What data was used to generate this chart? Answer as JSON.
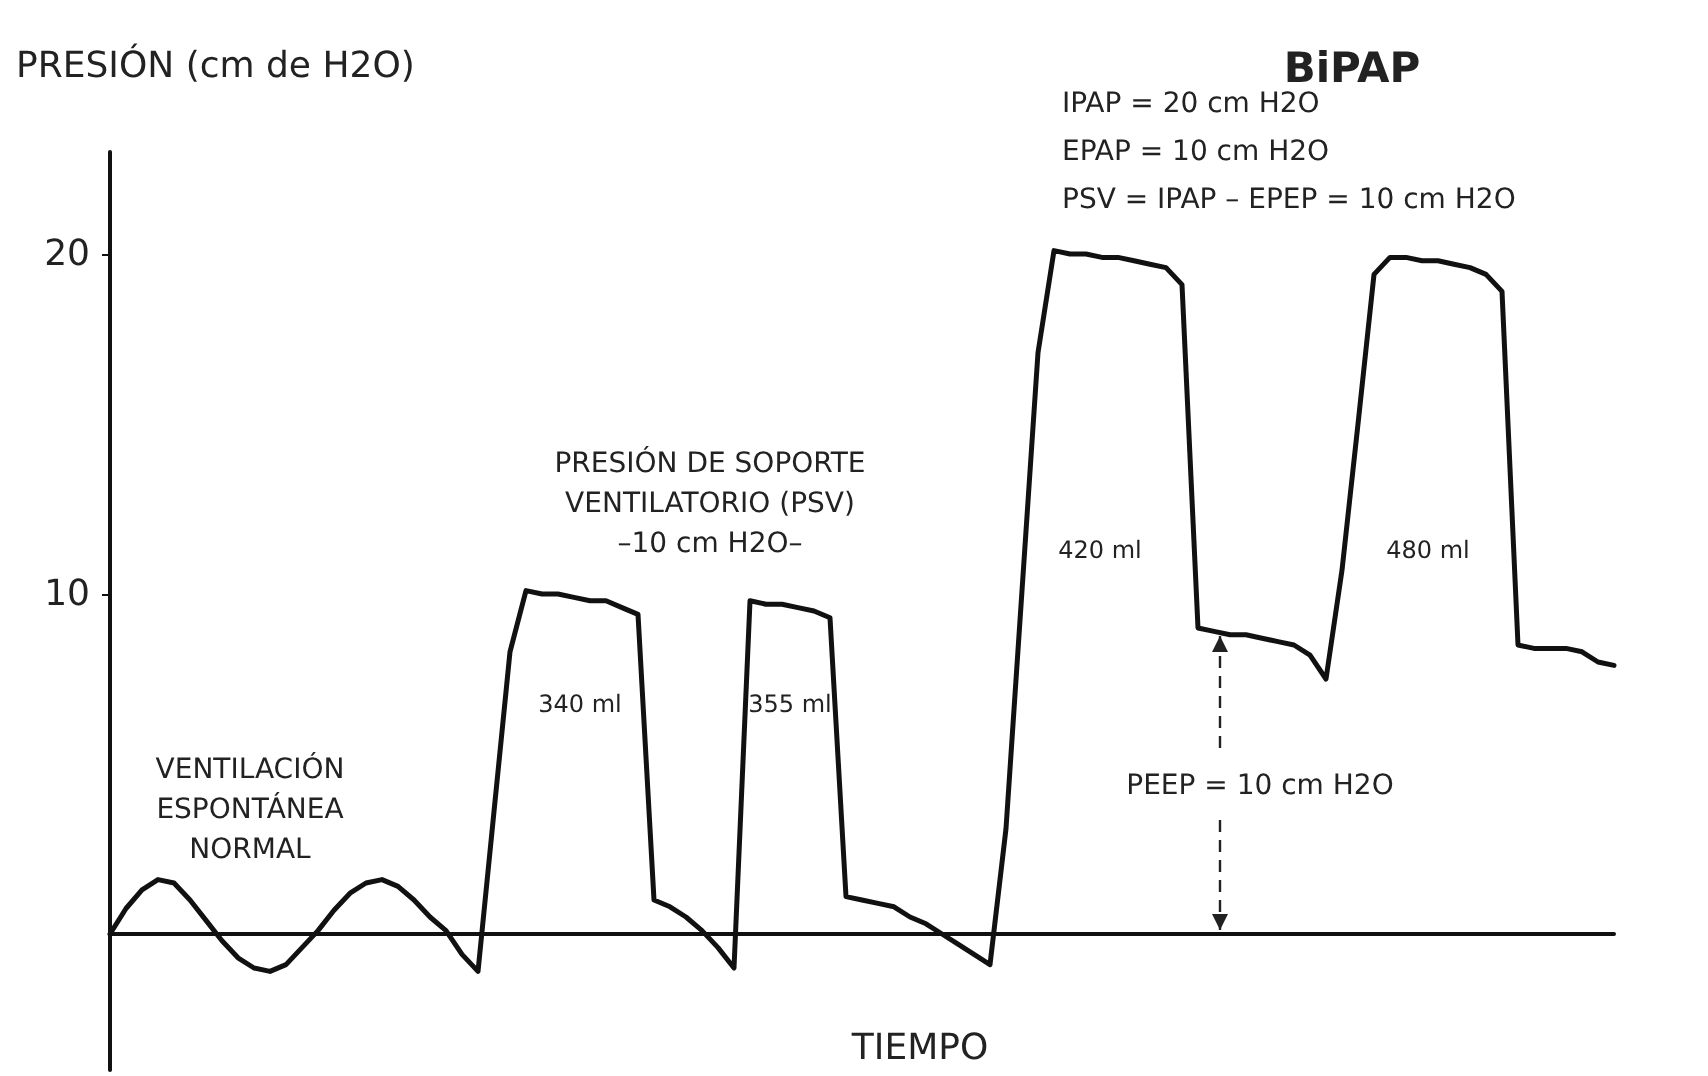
{
  "chart_data": {
    "type": "line",
    "ylabel": "PRESIÓN (cm de H2O)",
    "xlabel": "TIEMPO",
    "categories": [
      null,
      null,
      null,
      null,
      null,
      null,
      null,
      null,
      null,
      null,
      null,
      null,
      null,
      null,
      null,
      null,
      null,
      null,
      null,
      null,
      null,
      null,
      null,
      null,
      null,
      null,
      null,
      null,
      null,
      null,
      null,
      null,
      null,
      null,
      null,
      null,
      null,
      null,
      null,
      null,
      null,
      null,
      null,
      null,
      null,
      null,
      null,
      null,
      null,
      null,
      null,
      null,
      null,
      null,
      null,
      null,
      null,
      null,
      null,
      null,
      null,
      null,
      null,
      null,
      null,
      null,
      null,
      null,
      null,
      null,
      null,
      null,
      null,
      null,
      null,
      null,
      null,
      null,
      null,
      null,
      null,
      null,
      null,
      null,
      null,
      null,
      null,
      null,
      null,
      null,
      null,
      null,
      null,
      null,
      null
    ],
    "ylim": [
      -4,
      23
    ],
    "yticks": [
      10,
      20
    ],
    "tick_labels": "y",
    "grid": false,
    "line_style": "solid",
    "series": [
      {
        "color": "#111111",
        "values": [
          0,
          0.75,
          1.3,
          1.6,
          1.5,
          1.0,
          0.4,
          -0.2,
          -0.7,
          -1.0,
          -1.1,
          -0.9,
          -0.4,
          0.1,
          0.7,
          1.2,
          1.5,
          1.6,
          1.4,
          1.0,
          0.5,
          0.1,
          -0.6,
          -1.1,
          3.6,
          8.3,
          10.1,
          10.0,
          10.0,
          9.9,
          9.8,
          9.8,
          9.6,
          9.4,
          1.0,
          0.8,
          0.5,
          0.1,
          -0.4,
          -1.0,
          9.8,
          9.7,
          9.7,
          9.6,
          9.5,
          9.3,
          1.1,
          1.0,
          0.9,
          0.8,
          0.5,
          0.3,
          0.0,
          -0.3,
          -0.6,
          -0.9,
          3.1,
          10.1,
          17.1,
          20.1,
          20.0,
          20.0,
          19.9,
          19.9,
          19.8,
          19.7,
          19.6,
          19.1,
          9.0,
          8.9,
          8.8,
          8.8,
          8.7,
          8.6,
          8.5,
          8.2,
          7.5,
          10.7,
          15.0,
          19.4,
          19.9,
          19.9,
          19.8,
          19.8,
          19.7,
          19.6,
          19.4,
          18.9,
          8.5,
          8.4,
          8.4,
          8.4,
          8.3,
          8.0,
          7.9
        ]
      }
    ],
    "annotations": [
      "BiPAP",
      "IPAP = 20 cm H2O\nEPAP = 10 cm H2O\nPSV = IPAP – EPEP = 10 cm H2O",
      "VENTILACIÓN\nESPONTÁNEA\nNORMAL",
      "PRESIÓN DE SOPORTE\nVENTILATORIO (PSV)\n–10 cm H2O–",
      "340 ml",
      "355 ml",
      "420 ml",
      "480 ml",
      "PEEP = 10 cm H2O"
    ]
  }
}
